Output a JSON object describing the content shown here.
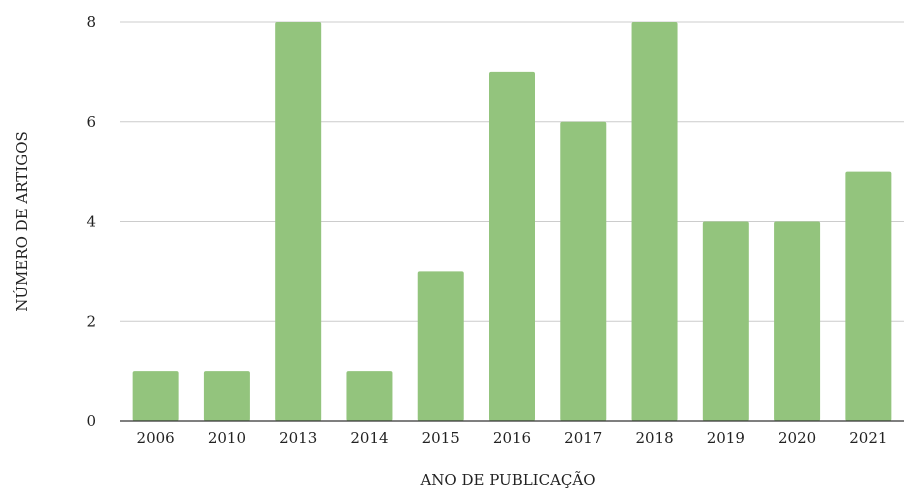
{
  "chart_data": {
    "type": "bar",
    "title": "",
    "xlabel": "ANO DE PUBLICAÇÃO",
    "ylabel": "NÚMERO DE ARTIGOS",
    "categories": [
      "2006",
      "2010",
      "2013",
      "2014",
      "2015",
      "2016",
      "2017",
      "2018",
      "2019",
      "2020",
      "2021"
    ],
    "values": [
      1,
      1,
      8,
      1,
      3,
      7,
      6,
      8,
      4,
      4,
      5
    ],
    "ylim": [
      0,
      8
    ],
    "yticks": [
      "0",
      "2",
      "4",
      "6",
      "8"
    ],
    "grid": true,
    "legend": "none",
    "bar_color": "#93c47d",
    "grid_color": "#cccccc",
    "axis_color": "#333333"
  }
}
